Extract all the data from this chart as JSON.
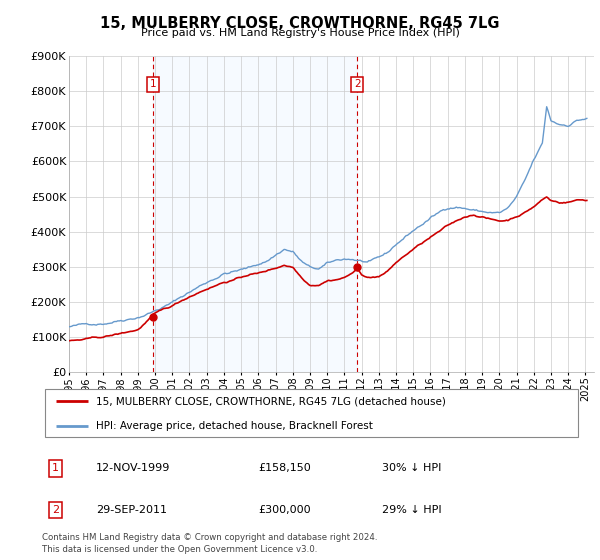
{
  "title": "15, MULBERRY CLOSE, CROWTHORNE, RG45 7LG",
  "subtitle": "Price paid vs. HM Land Registry's House Price Index (HPI)",
  "ylabel_ticks": [
    "£0",
    "£100K",
    "£200K",
    "£300K",
    "£400K",
    "£500K",
    "£600K",
    "£700K",
    "£800K",
    "£900K"
  ],
  "ylim": [
    0,
    900000
  ],
  "ytick_vals": [
    0,
    100000,
    200000,
    300000,
    400000,
    500000,
    600000,
    700000,
    800000,
    900000
  ],
  "sale1_date": 1999.87,
  "sale1_price": 158150,
  "sale1_label": "1",
  "sale2_date": 2011.75,
  "sale2_price": 300000,
  "sale2_label": "2",
  "legend_red": "15, MULBERRY CLOSE, CROWTHORNE, RG45 7LG (detached house)",
  "legend_blue": "HPI: Average price, detached house, Bracknell Forest",
  "table_row1": [
    "1",
    "12-NOV-1999",
    "£158,150",
    "30% ↓ HPI"
  ],
  "table_row2": [
    "2",
    "29-SEP-2011",
    "£300,000",
    "29% ↓ HPI"
  ],
  "footnote": "Contains HM Land Registry data © Crown copyright and database right 2024.\nThis data is licensed under the Open Government Licence v3.0.",
  "red_color": "#cc0000",
  "blue_color": "#6699cc",
  "shade_color": "#ddeeff",
  "xlim": [
    1995,
    2025.5
  ],
  "xtick_years": [
    1995,
    1996,
    1997,
    1998,
    1999,
    2000,
    2001,
    2002,
    2003,
    2004,
    2005,
    2006,
    2007,
    2008,
    2009,
    2010,
    2011,
    2012,
    2013,
    2014,
    2015,
    2016,
    2017,
    2018,
    2019,
    2020,
    2021,
    2022,
    2023,
    2024,
    2025
  ]
}
